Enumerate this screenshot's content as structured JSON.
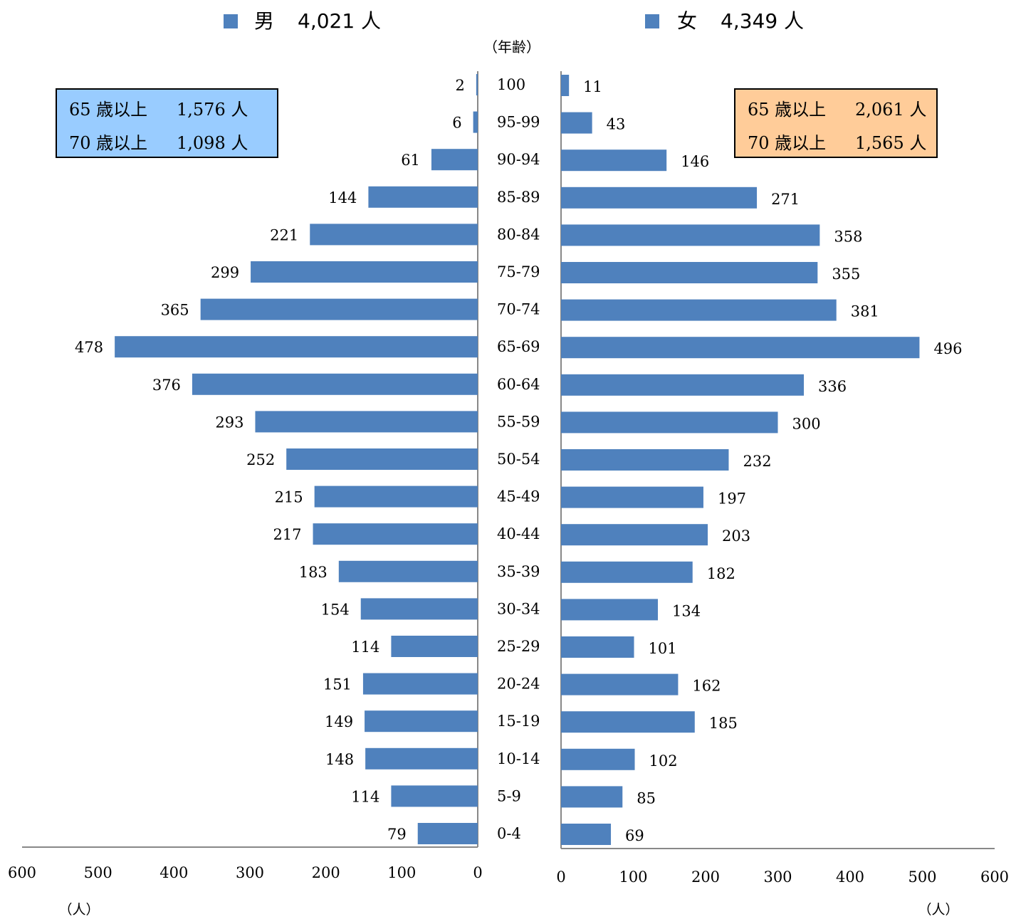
{
  "chart_data": {
    "type": "bar",
    "subtype": "population-pyramid",
    "y_axis_title": "（年齢）",
    "unit_label": "（人）",
    "categories": [
      "100",
      "95-99",
      "90-94",
      "85-89",
      "80-84",
      "75-79",
      "70-74",
      "65-69",
      "60-64",
      "55-59",
      "50-54",
      "45-49",
      "40-44",
      "35-39",
      "30-34",
      "25-29",
      "20-24",
      "15-19",
      "10-14",
      "5-9",
      "0-4"
    ],
    "series": [
      {
        "name": "男",
        "total_label": "4,021 人",
        "color": "#4f81bd",
        "values": [
          2,
          6,
          61,
          144,
          221,
          299,
          365,
          478,
          376,
          293,
          252,
          215,
          217,
          183,
          154,
          114,
          151,
          149,
          148,
          114,
          79
        ]
      },
      {
        "name": "女",
        "total_label": "4,349 人",
        "color": "#4f81bd",
        "values": [
          11,
          43,
          146,
          271,
          358,
          355,
          381,
          496,
          336,
          300,
          232,
          197,
          203,
          182,
          134,
          101,
          162,
          185,
          102,
          85,
          69
        ]
      }
    ],
    "xlim": [
      0,
      600
    ],
    "x_ticks": [
      0,
      100,
      200,
      300,
      400,
      500,
      600
    ],
    "grid": false,
    "summary_boxes": {
      "male": {
        "bg": "#99ccff",
        "lines": [
          {
            "label": "65 歳以上",
            "value": "1,576 人"
          },
          {
            "label": "70 歳以上",
            "value": "1,098 人"
          }
        ]
      },
      "female": {
        "bg": "#ffcc99",
        "lines": [
          {
            "label": "65 歳以上",
            "value": "2,061 人"
          },
          {
            "label": "70 歳以上",
            "value": "1,565 人"
          }
        ]
      }
    }
  }
}
